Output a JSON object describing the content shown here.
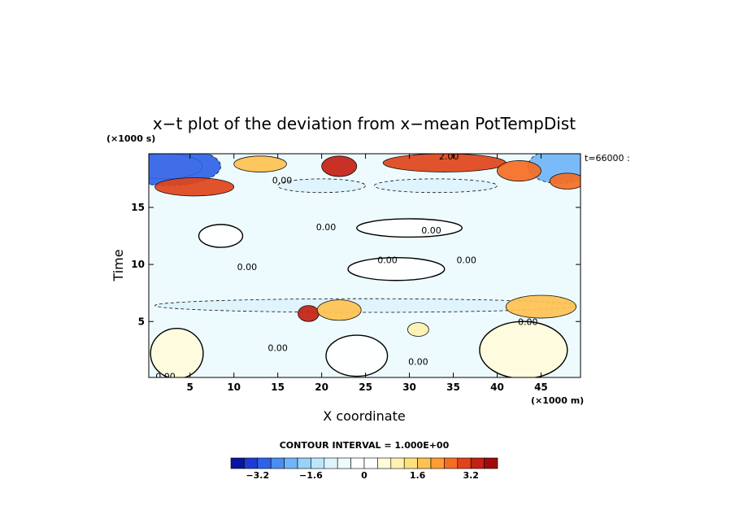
{
  "chart_data": {
    "type": "heatmap",
    "title": "x−t plot of the deviation from x−mean PotTempDist",
    "time_tag": "t=66000 :",
    "xlabel": "X coordinate",
    "ylabel": "Time",
    "x_unit": "(×1000 m)",
    "y_unit": "(×1000 s)",
    "xlim": [
      0.3,
      49.5
    ],
    "ylim": [
      0.1,
      19.7
    ],
    "x_ticks": [
      5,
      10,
      15,
      20,
      25,
      30,
      35,
      40,
      45
    ],
    "y_ticks": [
      5,
      10,
      15
    ],
    "contour_interval_text": "CONTOUR INTERVAL = 1.000E+00",
    "contour_labels": [
      {
        "text": "2.00",
        "x": 34.5,
        "y": 19.5
      },
      {
        "text": "0.00",
        "x": 15.5,
        "y": 17.4
      },
      {
        "text": "0.00",
        "x": 20.5,
        "y": 13.3
      },
      {
        "text": "0.00",
        "x": 32.5,
        "y": 13.0
      },
      {
        "text": "0.00",
        "x": 27.5,
        "y": 10.4
      },
      {
        "text": "0.00",
        "x": 36.5,
        "y": 10.4
      },
      {
        "text": "0.00",
        "x": 11.5,
        "y": 9.8
      },
      {
        "text": "0.00",
        "x": 43.5,
        "y": 5.0
      },
      {
        "text": "0.00",
        "x": 15.0,
        "y": 2.7
      },
      {
        "text": "0.00",
        "x": 31.0,
        "y": 1.5
      },
      {
        "text": "0.00",
        "x": 2.2,
        "y": 0.2
      }
    ],
    "field_features": [
      {
        "kind": "undefined",
        "x": 2.2,
        "y": 18.6,
        "rx": 4.2,
        "ry": 1.1
      },
      {
        "kind": "negative",
        "x": 2.5,
        "y": 18.6,
        "rx": 6.0,
        "ry": 1.7,
        "value": -3.0
      },
      {
        "kind": "negative",
        "x": 47.0,
        "y": 18.6,
        "rx": 3.5,
        "ry": 1.5,
        "value": -2.4
      },
      {
        "kind": "positive",
        "x": 34.0,
        "y": 18.9,
        "rx": 7.0,
        "ry": 0.8,
        "value": 3.0
      },
      {
        "kind": "positive",
        "x": 22.0,
        "y": 18.6,
        "rx": 2.0,
        "ry": 0.9,
        "value": 3.2
      },
      {
        "kind": "positive",
        "x": 42.5,
        "y": 18.2,
        "rx": 2.5,
        "ry": 0.9,
        "value": 2.4
      },
      {
        "kind": "positive",
        "x": 13.0,
        "y": 18.8,
        "rx": 3.0,
        "ry": 0.7,
        "value": 1.6
      },
      {
        "kind": "positive",
        "x": 5.5,
        "y": 16.8,
        "rx": 4.5,
        "ry": 0.8,
        "value": 3.0
      },
      {
        "kind": "positive",
        "x": 48.0,
        "y": 17.3,
        "rx": 2.0,
        "ry": 0.7,
        "value": 2.6
      },
      {
        "kind": "negative",
        "x": 20.0,
        "y": 16.9,
        "rx": 5.0,
        "ry": 0.6,
        "value": -1.2
      },
      {
        "kind": "negative",
        "x": 33.0,
        "y": 16.9,
        "rx": 7.0,
        "ry": 0.6,
        "value": -1.0
      },
      {
        "kind": "neutral",
        "x": 30.0,
        "y": 13.2,
        "rx": 6.0,
        "ry": 0.8,
        "value": 0.1
      },
      {
        "kind": "neutral",
        "x": 28.5,
        "y": 9.6,
        "rx": 5.5,
        "ry": 1.0,
        "value": 0.1
      },
      {
        "kind": "neutral",
        "x": 8.5,
        "y": 12.5,
        "rx": 2.5,
        "ry": 1.0,
        "value": 0.1
      },
      {
        "kind": "neutral",
        "x": 3.5,
        "y": 2.2,
        "rx": 3.0,
        "ry": 2.2,
        "value": 0.4
      },
      {
        "kind": "neutral",
        "x": 24.0,
        "y": 2.0,
        "rx": 3.5,
        "ry": 1.8,
        "value": 0.3
      },
      {
        "kind": "neutral",
        "x": 43.0,
        "y": 2.5,
        "rx": 5.0,
        "ry": 2.5,
        "value": 0.4
      },
      {
        "kind": "negative",
        "x": 25.0,
        "y": 6.4,
        "rx": 24.0,
        "ry": 0.6,
        "value": -0.9
      },
      {
        "kind": "positive",
        "x": 18.5,
        "y": 5.7,
        "rx": 1.2,
        "ry": 0.7,
        "value": 3.2
      },
      {
        "kind": "positive",
        "x": 22.0,
        "y": 6.0,
        "rx": 2.5,
        "ry": 0.9,
        "value": 1.8
      },
      {
        "kind": "positive",
        "x": 45.0,
        "y": 6.3,
        "rx": 4.0,
        "ry": 1.0,
        "value": 1.6
      },
      {
        "kind": "positive",
        "x": 31.0,
        "y": 4.3,
        "rx": 1.2,
        "ry": 0.6,
        "value": 0.8
      }
    ],
    "colorbar": {
      "min": -4.0,
      "max": 4.0,
      "tick_values": [
        -3.2,
        -1.6,
        0,
        1.6,
        3.2
      ],
      "tick_labels": [
        "−3.2",
        "−1.6",
        "0",
        "1.6",
        "3.2"
      ],
      "colors": [
        "#0a14a0",
        "#1e3cd2",
        "#2f62e6",
        "#4a8ef0",
        "#6fb5f7",
        "#97d2fa",
        "#bde6fc",
        "#ddf3fd",
        "#eefbfe",
        "#ffffff",
        "#ffffff",
        "#fffbdc",
        "#fff2b0",
        "#ffe07e",
        "#ffc150",
        "#ff9c35",
        "#f56d23",
        "#e0441a",
        "#c42014",
        "#a00a0a"
      ]
    }
  }
}
